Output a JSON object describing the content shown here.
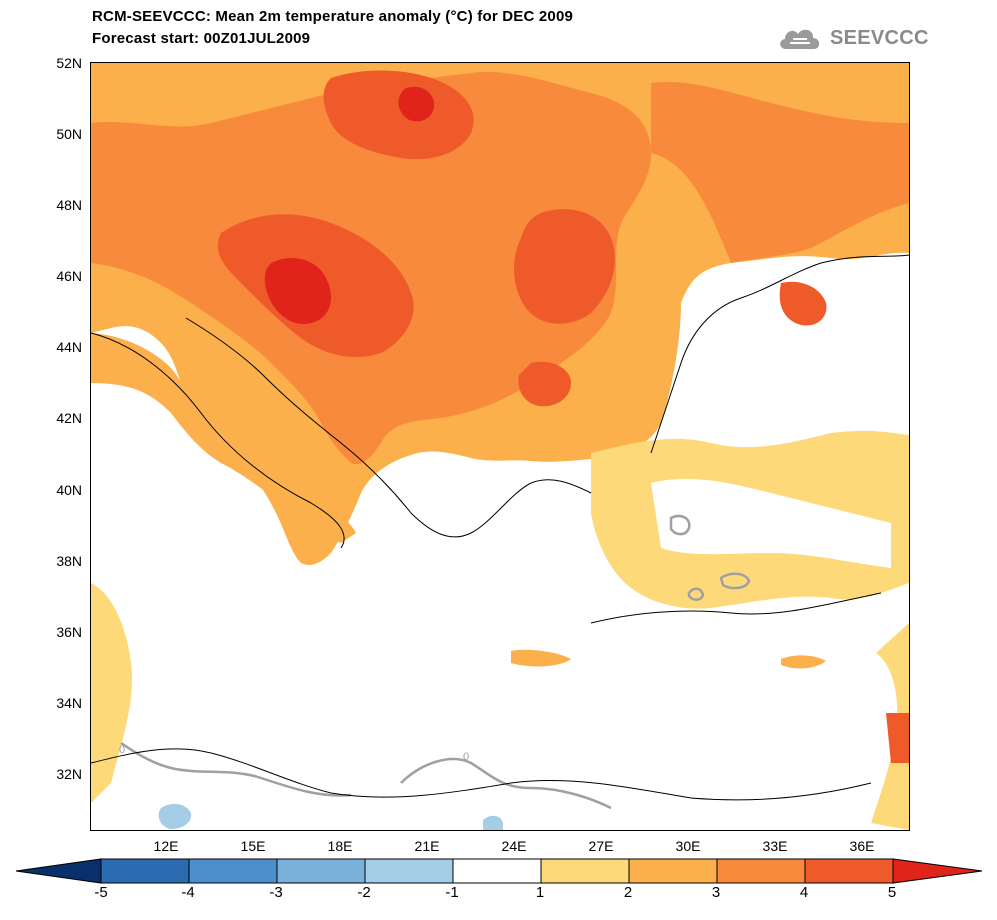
{
  "header": {
    "title_line1": "RCM-SEEVCCC: Mean 2m temperature anomaly (°C) for DEC 2009",
    "title_line2": "Forecast start: 00Z01JUL2009"
  },
  "logo": {
    "icon": "cloud-icon",
    "text": "SEEVCCC"
  },
  "axes": {
    "lat_labels": [
      "52N",
      "50N",
      "48N",
      "46N",
      "44N",
      "42N",
      "40N",
      "38N",
      "36N",
      "34N",
      "32N"
    ],
    "lon_labels": [
      "12E",
      "15E",
      "18E",
      "21E",
      "24E",
      "27E",
      "30E",
      "33E",
      "36E"
    ]
  },
  "map": {
    "region": "Balkans and Eastern Mediterranean",
    "variable": "Mean 2m temperature anomaly",
    "unit": "°C",
    "contour_labels": [
      "0",
      "0"
    ]
  },
  "colorbar": {
    "levels": [
      "-5",
      "-4",
      "-3",
      "-2",
      "-1",
      "1",
      "2",
      "3",
      "4",
      "5"
    ],
    "colors": [
      "#08306b",
      "#2b6cb0",
      "#4d8fcc",
      "#7ab2dc",
      "#a6cde6",
      "#ffffff",
      "#fdd97a",
      "#fbb04c",
      "#f78a3c",
      "#ef5a2a",
      "#e0241c"
    ]
  }
}
